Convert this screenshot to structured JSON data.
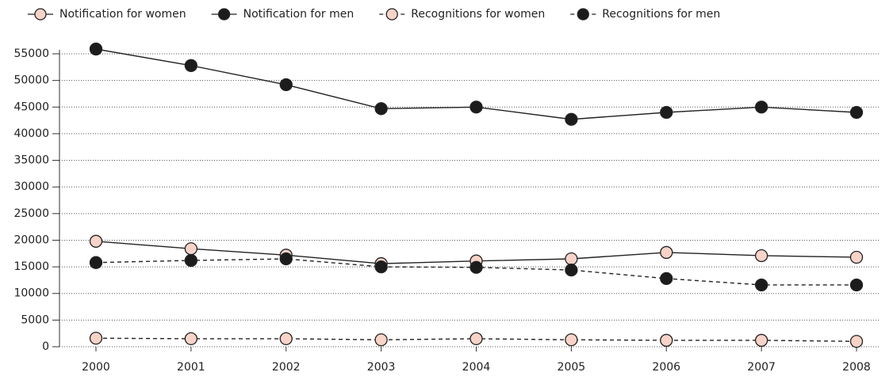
{
  "chart_data": {
    "type": "line",
    "categories": [
      "2000",
      "2001",
      "2002",
      "2003",
      "2004",
      "2005",
      "2006",
      "2007",
      "2008"
    ],
    "series": [
      {
        "name": "Notification for women",
        "color": "#f8d3c8",
        "dashed": false,
        "values": [
          19800,
          18400,
          17200,
          15600,
          16100,
          16500,
          17700,
          17100,
          16800
        ]
      },
      {
        "name": "Notification for men",
        "color": "#1c1c1c",
        "dashed": false,
        "values": [
          55900,
          52800,
          49200,
          44700,
          45000,
          42700,
          44000,
          45000,
          44000
        ]
      },
      {
        "name": "Recognitions for women",
        "color": "#f8d3c8",
        "dashed": true,
        "values": [
          1600,
          1500,
          1500,
          1300,
          1500,
          1300,
          1200,
          1200,
          1000
        ]
      },
      {
        "name": "Recognitions for men",
        "color": "#1c1c1c",
        "dashed": true,
        "values": [
          15800,
          16200,
          16500,
          15000,
          14900,
          14400,
          12800,
          11600,
          11600
        ]
      }
    ],
    "ylim": [
      0,
      55000
    ],
    "yticks": [
      0,
      5000,
      10000,
      15000,
      20000,
      25000,
      30000,
      35000,
      40000,
      45000,
      50000,
      55000
    ],
    "grid": true
  }
}
